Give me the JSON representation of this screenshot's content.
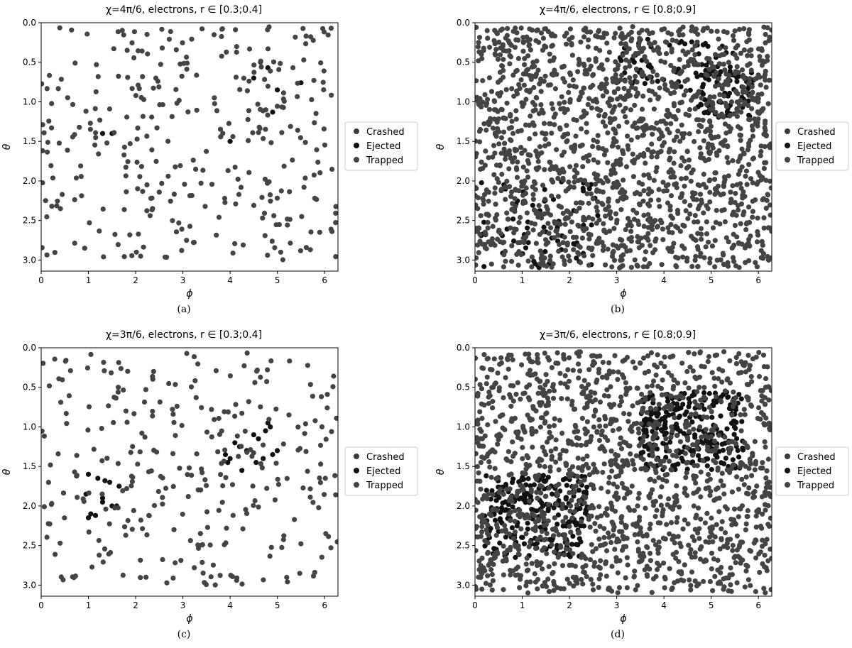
{
  "colors": {
    "crashed": "#3a3a3a",
    "ejected": "#111111",
    "trapped": "#444444",
    "axes": "#000000",
    "background": "#ffffff"
  },
  "legend_labels": [
    "Crashed",
    "Ejected",
    "Trapped"
  ],
  "chart_data": [
    {
      "type": "scatter",
      "panel_label": "(a)",
      "title": "χ=4π/6, electrons, r ∈ [0.3;0.4]",
      "xlabel": "ϕ",
      "ylabel": "θ",
      "xlim": [
        0,
        6.283
      ],
      "ylim": [
        3.14,
        0
      ],
      "y_inverted": true,
      "xticks": [
        0,
        1,
        2,
        3,
        4,
        5,
        6
      ],
      "yticks": [
        0.0,
        0.5,
        1.0,
        1.5,
        2.0,
        2.5,
        3.0
      ],
      "grid": false,
      "legend_position": "right",
      "series": [
        {
          "name": "Crashed",
          "approx_count": 0,
          "points": []
        },
        {
          "name": "Ejected",
          "approx_count": 8,
          "points": [
            [
              1.3,
              1.4
            ],
            [
              4.5,
              0.7
            ],
            [
              4.8,
              0.57
            ],
            [
              4.9,
              1.13
            ],
            [
              5.5,
              0.76
            ],
            [
              5.0,
              0.85
            ],
            [
              1.5,
              1.4
            ],
            [
              4.0,
              1.5
            ]
          ]
        },
        {
          "name": "Trapped",
          "approx_count": 330,
          "distribution": {
            "x_range": [
              0.0,
              6.28
            ],
            "y_range": [
              0.05,
              3.0
            ]
          }
        }
      ]
    },
    {
      "type": "scatter",
      "panel_label": "(b)",
      "title": "χ=4π/6, electrons, r ∈ [0.8;0.9]",
      "xlabel": "ϕ",
      "ylabel": "θ",
      "xlim": [
        0,
        6.283
      ],
      "ylim": [
        3.14,
        0
      ],
      "y_inverted": true,
      "xticks": [
        0,
        1,
        2,
        3,
        4,
        5,
        6
      ],
      "yticks": [
        0.0,
        0.5,
        1.0,
        1.5,
        2.0,
        2.5,
        3.0
      ],
      "grid": false,
      "legend_position": "right",
      "series": [
        {
          "name": "Crashed",
          "approx_count": 0,
          "points": []
        },
        {
          "name": "Ejected",
          "approx_count": 200,
          "regions": [
            {
              "x_range": [
                3.0,
                5.5
              ],
              "y_range": [
                0.2,
                0.9
              ]
            },
            {
              "x_range": [
                4.7,
                5.9
              ],
              "y_range": [
                0.6,
                1.2
              ]
            },
            {
              "x_range": [
                0.1,
                2.6
              ],
              "y_range": [
                2.0,
                3.1
              ]
            }
          ]
        },
        {
          "name": "Trapped",
          "approx_count": 1700,
          "distribution": {
            "x_range": [
              0.0,
              6.28
            ],
            "y_range": [
              0.05,
              3.1
            ]
          }
        }
      ]
    },
    {
      "type": "scatter",
      "panel_label": "(c)",
      "title": "χ=3π/6, electrons, r ∈ [0.3;0.4]",
      "xlabel": "ϕ",
      "ylabel": "θ",
      "xlim": [
        0,
        6.283
      ],
      "ylim": [
        3.14,
        0
      ],
      "y_inverted": true,
      "xticks": [
        0,
        1,
        2,
        3,
        4,
        5,
        6
      ],
      "yticks": [
        0.0,
        0.5,
        1.0,
        1.5,
        2.0,
        2.5,
        3.0
      ],
      "grid": false,
      "legend_position": "right",
      "series": [
        {
          "name": "Crashed",
          "approx_count": 0,
          "points": []
        },
        {
          "name": "Ejected",
          "approx_count": 30,
          "points": [
            [
              0.75,
              1.62
            ],
            [
              0.95,
              1.85
            ],
            [
              1.0,
              1.6
            ],
            [
              1.05,
              2.1
            ],
            [
              1.15,
              2.12
            ],
            [
              1.2,
              1.65
            ],
            [
              1.3,
              1.9
            ],
            [
              1.35,
              1.68
            ],
            [
              1.5,
              2.0
            ],
            [
              1.6,
              2.0
            ],
            [
              1.65,
              1.75
            ],
            [
              1.45,
              1.7
            ],
            [
              1.3,
              1.95
            ],
            [
              3.9,
              1.35
            ],
            [
              4.0,
              1.4
            ],
            [
              4.1,
              1.2
            ],
            [
              4.2,
              1.25
            ],
            [
              4.35,
              1.3
            ],
            [
              4.5,
              1.1
            ],
            [
              4.6,
              1.15
            ],
            [
              4.7,
              1.4
            ],
            [
              4.8,
              0.95
            ],
            [
              4.85,
              1.0
            ],
            [
              4.9,
              1.35
            ],
            [
              5.0,
              1.3
            ],
            [
              4.55,
              1.45
            ],
            [
              4.25,
              1.55
            ],
            [
              3.95,
              1.45
            ],
            [
              1.0,
              2.15
            ],
            [
              4.75,
              1.05
            ]
          ]
        },
        {
          "name": "Trapped",
          "approx_count": 300,
          "distribution": {
            "x_range": [
              0.0,
              6.28
            ],
            "y_range": [
              0.05,
              3.0
            ]
          }
        }
      ]
    },
    {
      "type": "scatter",
      "panel_label": "(d)",
      "title": "χ=3π/6, electrons, r ∈ [0.8;0.9]",
      "xlabel": "ϕ",
      "ylabel": "θ",
      "xlim": [
        0,
        6.283
      ],
      "ylim": [
        3.14,
        0
      ],
      "y_inverted": true,
      "xticks": [
        0,
        1,
        2,
        3,
        4,
        5,
        6
      ],
      "yticks": [
        0.0,
        0.5,
        1.0,
        1.5,
        2.0,
        2.5,
        3.0
      ],
      "grid": false,
      "legend_position": "right",
      "series": [
        {
          "name": "Crashed",
          "approx_count": 0,
          "points": []
        },
        {
          "name": "Ejected",
          "approx_count": 500,
          "regions": [
            {
              "x_range": [
                3.5,
                5.7
              ],
              "y_range": [
                0.55,
                1.55
              ]
            },
            {
              "x_range": [
                0.2,
                2.4
              ],
              "y_range": [
                1.6,
                2.65
              ]
            }
          ]
        },
        {
          "name": "Trapped",
          "approx_count": 1500,
          "distribution": {
            "x_range": [
              0.0,
              6.28
            ],
            "y_range": [
              0.05,
              3.1
            ]
          }
        }
      ]
    }
  ]
}
